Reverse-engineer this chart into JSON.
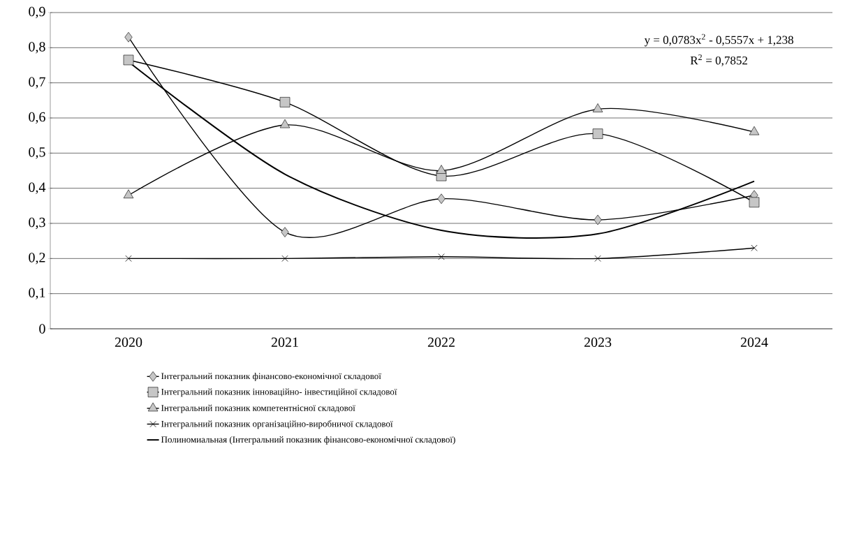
{
  "chart_data": {
    "type": "line",
    "categories": [
      "2020",
      "2021",
      "2022",
      "2023",
      "2024"
    ],
    "series": [
      {
        "name": "Інтегральний показник фінансово-економічної складової",
        "color": "#000000",
        "marker": "diamond",
        "values": [
          0.83,
          0.275,
          0.37,
          0.31,
          0.38
        ]
      },
      {
        "name": "Інтегральний показник інноваційно- інвестиційної складової",
        "color": "#000000",
        "marker": "square",
        "values": [
          0.765,
          0.645,
          0.435,
          0.555,
          0.36
        ]
      },
      {
        "name": "Інтегральний показник компетентнісної складової",
        "color": "#000000",
        "marker": "triangle",
        "values": [
          0.38,
          0.58,
          0.45,
          0.625,
          0.56
        ]
      },
      {
        "name": "Інтегральний показник організаційно-виробничої складової",
        "color": "#000000",
        "marker": "cross",
        "values": [
          0.2,
          0.2,
          0.205,
          0.2,
          0.23
        ]
      },
      {
        "name": "Полиномиальная (Інтегральний показник фінансово-економічної складової)",
        "color": "#000000",
        "marker": "none",
        "values": [
          0.76,
          0.44,
          0.28,
          0.27,
          0.42
        ]
      }
    ],
    "ylim": [
      0,
      0.9
    ],
    "yticks": [
      0,
      {
        "value": 0.1,
        "label": "0,1"
      },
      {
        "value": 0.2,
        "label": "0,2"
      },
      {
        "value": 0.3,
        "label": "0,3"
      },
      {
        "value": 0.4,
        "label": "0,4"
      },
      {
        "value": 0.5,
        "label": "0,5"
      },
      {
        "value": 0.6,
        "label": "0,6"
      },
      {
        "value": 0.7,
        "label": "0,7"
      },
      {
        "value": 0.8,
        "label": "0,8"
      },
      {
        "value": 0.9,
        "label": "0,9"
      }
    ],
    "grid": "y",
    "legend": "bottom",
    "annotations": [
      "y = 0,0783x$^{2}$ - 0,5557x + 1,238",
      "R$^{2}$ = 0,7852"
    ]
  }
}
